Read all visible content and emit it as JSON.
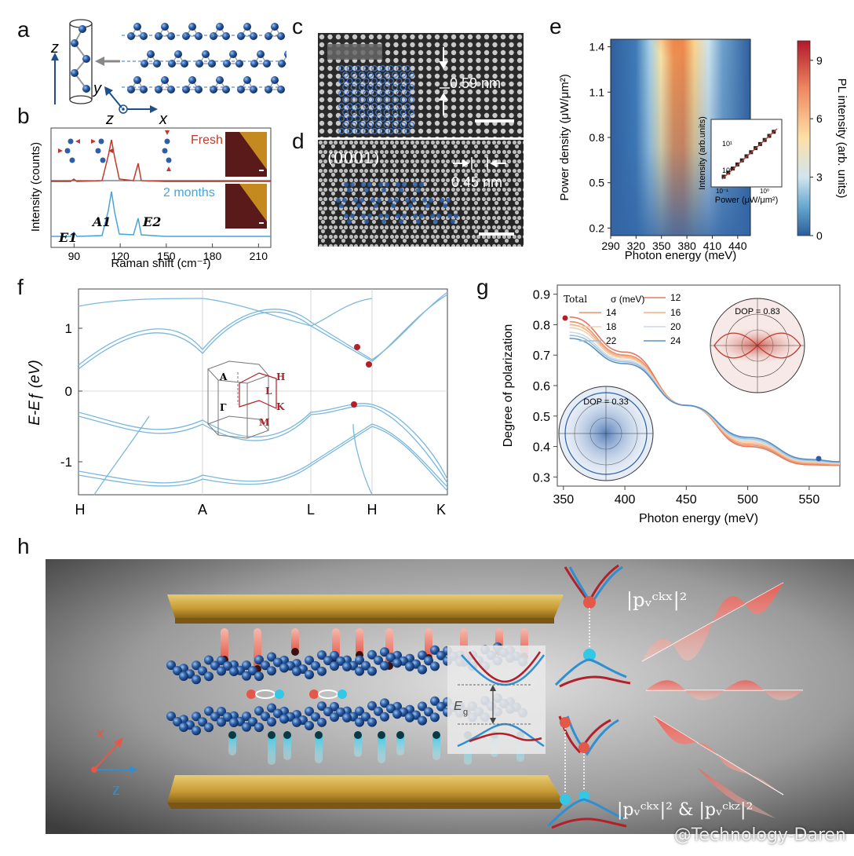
{
  "labels": {
    "a": "a",
    "b": "b",
    "c": "c",
    "d": "d",
    "e": "e",
    "f": "f",
    "g": "g",
    "h": "h"
  },
  "colors": {
    "atom": "#2d5fa8",
    "fresh": "#c0392b",
    "aged": "#4aa3d8",
    "band": "#7ab8dd",
    "kpoint": "#b3202a"
  },
  "panel_a": {
    "z_axis": "z",
    "y_axis": "y",
    "z2": "z",
    "x_axis": "x"
  },
  "panel_b": {
    "ylabel": "Intensity (counts)",
    "xlabel": "Raman shift (cm⁻¹)",
    "fresh": "Fresh",
    "aged": "2 months",
    "modes": [
      "E1",
      "A1",
      "E2"
    ],
    "xticks": [
      "90",
      "120",
      "150",
      "180",
      "210"
    ]
  },
  "panel_c": {
    "spacing": "0.59 nm"
  },
  "panel_d": {
    "facet": "(0001)",
    "spacing": "0.45 nm"
  },
  "panel_e": {
    "ylabel": "Power density (μW/μm²)",
    "xlabel": "Photon energy (meV)",
    "cbar_label": "PL intensity (arb. units)",
    "xticks": [
      "290",
      "320",
      "350",
      "380",
      "410",
      "440"
    ],
    "yticks": [
      "1.4",
      "1.1",
      "0.8",
      "0.5",
      "0.2"
    ],
    "cticks": [
      "9",
      "6",
      "3",
      "0"
    ],
    "inset_ylabel": "Intensity (arb.units)",
    "inset_xlabel": "Power (μW/μm²)",
    "inset_xticks": [
      "10⁻¹",
      "10⁰"
    ],
    "inset_yticks": [
      "10¹",
      "10⁰"
    ]
  },
  "panel_f": {
    "ylabel": "E-Eƒ (eV)",
    "yticks": [
      "1",
      "0",
      "-1"
    ],
    "kpath": [
      "H",
      "A",
      "L",
      "H",
      "K"
    ],
    "bz_points": [
      "A",
      "H",
      "L",
      "Γ",
      "K",
      "M"
    ]
  },
  "panel_g": {
    "ylabel": "Degree of polarization",
    "xlabel": "Photon energy (meV)",
    "xticks": [
      "350",
      "400",
      "450",
      "500",
      "550"
    ],
    "yticks": [
      "0.9",
      "0.8",
      "0.7",
      "0.6",
      "0.5",
      "0.4",
      "0.3"
    ],
    "legend_title": "Total",
    "legend_sigma": "σ (meV)",
    "sigma": [
      "12",
      "14",
      "16",
      "18",
      "20",
      "22",
      "24"
    ],
    "dop_high": "DOP = 0.83",
    "dop_low": "DOP = 0.33"
  },
  "panel_h": {
    "eg": "E",
    "eg_sub": "g",
    "axis_x": "x",
    "axis_z": "z",
    "formula1": "|pᵥᶜᵏˣ|²",
    "formula2": "|pᵥᶜᵏˣ|² & |pᵥᶜᵏᶻ|²"
  },
  "watermark": "@Technology-Daren",
  "chart_data": [
    {
      "type": "line",
      "title": "",
      "xlabel": "Raman shift (cm⁻¹)",
      "ylabel": "Intensity (counts)",
      "xlim": [
        75,
        218
      ],
      "peaks_cm": [
        93,
        121,
        141
      ],
      "series": [
        {
          "name": "Fresh",
          "peak_positions": [
            93,
            121,
            141
          ]
        },
        {
          "name": "2 months",
          "peak_positions": [
            93,
            121,
            141
          ]
        }
      ]
    },
    {
      "type": "heatmap",
      "xlabel": "Photon energy (meV)",
      "ylabel": "Power density (μW/μm²)",
      "xlim": [
        290,
        455
      ],
      "ylim": [
        0.15,
        1.45
      ],
      "clim": [
        0,
        10
      ],
      "peak_energy_meV": 360
    },
    {
      "type": "line",
      "xlabel": "Photon energy (meV)",
      "ylabel": "Degree of polarization",
      "xlim": [
        345,
        575
      ],
      "ylim": [
        0.27,
        0.93
      ],
      "x": [
        355,
        400,
        450,
        500,
        550,
        575
      ],
      "series": [
        {
          "name": "12",
          "values": [
            0.825,
            0.71,
            0.535,
            0.4,
            0.34,
            0.338
          ]
        },
        {
          "name": "14",
          "values": [
            0.81,
            0.7,
            0.535,
            0.405,
            0.343,
            0.34
          ]
        },
        {
          "name": "16",
          "values": [
            0.8,
            0.695,
            0.535,
            0.41,
            0.346,
            0.342
          ]
        },
        {
          "name": "18",
          "values": [
            0.79,
            0.69,
            0.535,
            0.415,
            0.349,
            0.344
          ]
        },
        {
          "name": "20",
          "values": [
            0.775,
            0.683,
            0.535,
            0.42,
            0.352,
            0.346
          ]
        },
        {
          "name": "22",
          "values": [
            0.765,
            0.678,
            0.535,
            0.425,
            0.355,
            0.348
          ]
        },
        {
          "name": "24",
          "values": [
            0.755,
            0.672,
            0.535,
            0.43,
            0.358,
            0.35
          ]
        }
      ]
    }
  ]
}
